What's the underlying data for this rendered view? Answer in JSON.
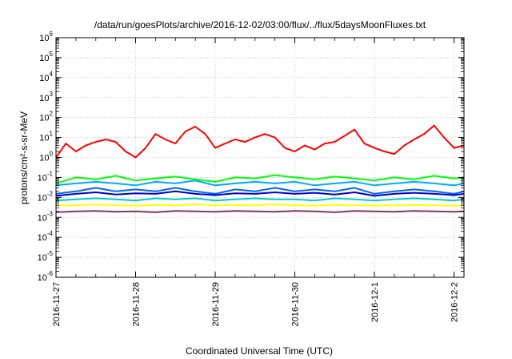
{
  "chart_data": {
    "type": "line",
    "title": "/data/run/goesPlots/archive/2016-12-02/03:00/flux/../flux/5daysMoonFluxes.txt",
    "xlabel": "Coordinated Universal Time (UTC)",
    "ylabel": "protons/cm²-s-sr-MeV",
    "x_ticks": [
      "2016-11-27",
      "2016-11-28",
      "2016-11-29",
      "2016-11-30",
      "2016-12-1",
      "2016-12-2"
    ],
    "xlim": [
      "2016-11-27T00:00",
      "2016-12-02T03:00"
    ],
    "y_scale": "log",
    "ylim": [
      1e-06,
      1000000.0
    ],
    "y_ticks": [
      {
        "base": "10",
        "exp": "-6",
        "value": 1e-06
      },
      {
        "base": "10",
        "exp": "-5",
        "value": 1e-05
      },
      {
        "base": "10",
        "exp": "-4",
        "value": 0.0001
      },
      {
        "base": "10",
        "exp": "-3",
        "value": 0.001
      },
      {
        "base": "10",
        "exp": "-2",
        "value": 0.01
      },
      {
        "base": "10",
        "exp": "-1",
        "value": 0.1
      },
      {
        "base": "10",
        "exp": "0",
        "value": 1
      },
      {
        "base": "10",
        "exp": "1",
        "value": 10
      },
      {
        "base": "10",
        "exp": "2",
        "value": 100
      },
      {
        "base": "10",
        "exp": "3",
        "value": 1000
      },
      {
        "base": "10",
        "exp": "4",
        "value": 10000
      },
      {
        "base": "10",
        "exp": "5",
        "value": 100000
      },
      {
        "base": "10",
        "exp": "6",
        "value": 1000000
      }
    ],
    "grid": true,
    "legend": "none",
    "series": [
      {
        "color": "#ff0000",
        "x": [
          "2016-11-27T00:00",
          "2016-11-27T03:00",
          "2016-11-27T06:00",
          "2016-11-27T09:00",
          "2016-11-27T12:00",
          "2016-11-27T15:00",
          "2016-11-27T18:00",
          "2016-11-27T21:00",
          "2016-11-28T00:00",
          "2016-11-28T03:00",
          "2016-11-28T06:00",
          "2016-11-28T09:00",
          "2016-11-28T12:00",
          "2016-11-28T15:00",
          "2016-11-28T18:00",
          "2016-11-28T21:00",
          "2016-11-29T00:00",
          "2016-11-29T03:00",
          "2016-11-29T06:00",
          "2016-11-29T09:00",
          "2016-11-29T12:00",
          "2016-11-29T15:00",
          "2016-11-29T18:00",
          "2016-11-29T21:00",
          "2016-11-30T00:00",
          "2016-11-30T03:00",
          "2016-11-30T06:00",
          "2016-11-30T09:00",
          "2016-11-30T12:00",
          "2016-11-30T15:00",
          "2016-11-30T18:00",
          "2016-11-30T21:00",
          "2016-12-01T00:00",
          "2016-12-01T03:00",
          "2016-12-01T06:00",
          "2016-12-01T09:00",
          "2016-12-01T12:00",
          "2016-12-01T15:00",
          "2016-12-01T18:00",
          "2016-12-01T21:00",
          "2016-12-02T00:00",
          "2016-12-02T03:00"
        ],
        "values": [
          1.0,
          5.0,
          2.0,
          4.0,
          6.0,
          8.0,
          6.0,
          2.0,
          1.0,
          3.0,
          15.0,
          8.0,
          5.0,
          20.0,
          35.0,
          15.0,
          3.0,
          5.0,
          8.0,
          6.0,
          10.0,
          15.0,
          10.0,
          3.0,
          2.0,
          4.0,
          2.5,
          5.0,
          6.0,
          12.0,
          25.0,
          5.0,
          3.0,
          2.0,
          1.5,
          4.0,
          8.0,
          15.0,
          40.0,
          10.0,
          3.0,
          4.0
        ]
      },
      {
        "color": "#00ff00",
        "x": [
          "2016-11-27T00:00",
          "2016-11-27T06:00",
          "2016-11-27T12:00",
          "2016-11-27T18:00",
          "2016-11-28T00:00",
          "2016-11-28T06:00",
          "2016-11-28T12:00",
          "2016-11-28T18:00",
          "2016-11-29T00:00",
          "2016-11-29T06:00",
          "2016-11-29T12:00",
          "2016-11-29T18:00",
          "2016-11-30T00:00",
          "2016-11-30T06:00",
          "2016-11-30T12:00",
          "2016-11-30T18:00",
          "2016-12-01T00:00",
          "2016-12-01T06:00",
          "2016-12-01T12:00",
          "2016-12-01T18:00",
          "2016-12-02T00:00",
          "2016-12-02T03:00"
        ],
        "values": [
          0.05,
          0.1,
          0.08,
          0.12,
          0.07,
          0.09,
          0.11,
          0.08,
          0.06,
          0.1,
          0.09,
          0.13,
          0.1,
          0.08,
          0.11,
          0.09,
          0.07,
          0.1,
          0.08,
          0.12,
          0.09,
          0.1
        ]
      },
      {
        "color": "#00aaff",
        "x": [
          "2016-11-27T00:00",
          "2016-11-27T06:00",
          "2016-11-27T12:00",
          "2016-11-27T18:00",
          "2016-11-28T00:00",
          "2016-11-28T06:00",
          "2016-11-28T12:00",
          "2016-11-28T18:00",
          "2016-11-29T00:00",
          "2016-11-29T06:00",
          "2016-11-29T12:00",
          "2016-11-29T18:00",
          "2016-11-30T00:00",
          "2016-11-30T06:00",
          "2016-11-30T12:00",
          "2016-11-30T18:00",
          "2016-12-01T00:00",
          "2016-12-01T06:00",
          "2016-12-01T12:00",
          "2016-12-01T18:00",
          "2016-12-02T00:00",
          "2016-12-02T03:00"
        ],
        "values": [
          0.04,
          0.05,
          0.06,
          0.05,
          0.04,
          0.06,
          0.05,
          0.07,
          0.04,
          0.05,
          0.06,
          0.05,
          0.06,
          0.04,
          0.05,
          0.06,
          0.04,
          0.05,
          0.06,
          0.05,
          0.04,
          0.05
        ]
      },
      {
        "color": "#0066ff",
        "x": [
          "2016-11-27T00:00",
          "2016-11-27T06:00",
          "2016-11-27T12:00",
          "2016-11-27T18:00",
          "2016-11-28T00:00",
          "2016-11-28T06:00",
          "2016-11-28T12:00",
          "2016-11-28T18:00",
          "2016-11-29T00:00",
          "2016-11-29T06:00",
          "2016-11-29T12:00",
          "2016-11-29T18:00",
          "2016-11-30T00:00",
          "2016-11-30T06:00",
          "2016-11-30T12:00",
          "2016-11-30T18:00",
          "2016-12-01T00:00",
          "2016-12-01T06:00",
          "2016-12-01T12:00",
          "2016-12-01T18:00",
          "2016-12-02T00:00",
          "2016-12-02T03:00"
        ],
        "values": [
          0.015,
          0.02,
          0.03,
          0.02,
          0.025,
          0.02,
          0.03,
          0.02,
          0.015,
          0.025,
          0.02,
          0.03,
          0.02,
          0.025,
          0.02,
          0.03,
          0.015,
          0.02,
          0.025,
          0.02,
          0.015,
          0.02
        ]
      },
      {
        "color": "#0000cc",
        "x": [
          "2016-11-27T00:00",
          "2016-11-27T06:00",
          "2016-11-27T12:00",
          "2016-11-27T18:00",
          "2016-11-28T00:00",
          "2016-11-28T06:00",
          "2016-11-28T12:00",
          "2016-11-28T18:00",
          "2016-11-29T00:00",
          "2016-11-29T06:00",
          "2016-11-29T12:00",
          "2016-11-29T18:00",
          "2016-11-30T00:00",
          "2016-11-30T06:00",
          "2016-11-30T12:00",
          "2016-11-30T18:00",
          "2016-12-01T00:00",
          "2016-12-01T06:00",
          "2016-12-01T12:00",
          "2016-12-01T18:00",
          "2016-12-02T00:00",
          "2016-12-02T03:00"
        ],
        "values": [
          0.012,
          0.015,
          0.018,
          0.014,
          0.016,
          0.015,
          0.02,
          0.015,
          0.013,
          0.016,
          0.015,
          0.018,
          0.015,
          0.017,
          0.014,
          0.018,
          0.012,
          0.015,
          0.017,
          0.015,
          0.013,
          0.015
        ]
      },
      {
        "color": "#00cccc",
        "x": [
          "2016-11-27T00:00",
          "2016-11-27T06:00",
          "2016-11-27T12:00",
          "2016-11-27T18:00",
          "2016-11-28T00:00",
          "2016-11-28T06:00",
          "2016-11-28T12:00",
          "2016-11-28T18:00",
          "2016-11-29T00:00",
          "2016-11-29T06:00",
          "2016-11-29T12:00",
          "2016-11-29T18:00",
          "2016-11-30T00:00",
          "2016-11-30T06:00",
          "2016-11-30T12:00",
          "2016-11-30T18:00",
          "2016-12-01T00:00",
          "2016-12-01T06:00",
          "2016-12-01T12:00",
          "2016-12-01T18:00",
          "2016-12-02T00:00",
          "2016-12-02T03:00"
        ],
        "values": [
          0.007,
          0.008,
          0.009,
          0.008,
          0.007,
          0.009,
          0.008,
          0.009,
          0.007,
          0.008,
          0.009,
          0.008,
          0.008,
          0.007,
          0.009,
          0.008,
          0.007,
          0.008,
          0.009,
          0.008,
          0.007,
          0.008
        ]
      },
      {
        "color": "#ffff00",
        "x": [
          "2016-11-27T00:00",
          "2016-11-27T06:00",
          "2016-11-27T12:00",
          "2016-11-27T18:00",
          "2016-11-28T00:00",
          "2016-11-28T06:00",
          "2016-11-28T12:00",
          "2016-11-28T18:00",
          "2016-11-29T00:00",
          "2016-11-29T06:00",
          "2016-11-29T12:00",
          "2016-11-29T18:00",
          "2016-11-30T00:00",
          "2016-11-30T06:00",
          "2016-11-30T12:00",
          "2016-11-30T18:00",
          "2016-12-01T00:00",
          "2016-12-01T06:00",
          "2016-12-01T12:00",
          "2016-12-01T18:00",
          "2016-12-02T00:00",
          "2016-12-02T03:00"
        ],
        "values": [
          0.004,
          0.004,
          0.0045,
          0.004,
          0.0038,
          0.0042,
          0.004,
          0.0045,
          0.004,
          0.0042,
          0.004,
          0.0045,
          0.004,
          0.0038,
          0.0042,
          0.004,
          0.0038,
          0.004,
          0.0042,
          0.004,
          0.0038,
          0.004
        ]
      },
      {
        "color": "#883366",
        "x": [
          "2016-11-27T00:00",
          "2016-11-27T06:00",
          "2016-11-27T12:00",
          "2016-11-27T18:00",
          "2016-11-28T00:00",
          "2016-11-28T06:00",
          "2016-11-28T12:00",
          "2016-11-28T18:00",
          "2016-11-29T00:00",
          "2016-11-29T06:00",
          "2016-11-29T12:00",
          "2016-11-29T18:00",
          "2016-11-30T00:00",
          "2016-11-30T06:00",
          "2016-11-30T12:00",
          "2016-11-30T18:00",
          "2016-12-01T00:00",
          "2016-12-01T06:00",
          "2016-12-01T12:00",
          "2016-12-01T18:00",
          "2016-12-02T00:00",
          "2016-12-02T03:00"
        ],
        "values": [
          0.0018,
          0.002,
          0.0021,
          0.0019,
          0.002,
          0.0018,
          0.0021,
          0.002,
          0.0019,
          0.0021,
          0.002,
          0.0019,
          0.0021,
          0.002,
          0.0018,
          0.0021,
          0.002,
          0.0019,
          0.0021,
          0.002,
          0.0019,
          0.002
        ]
      }
    ]
  }
}
